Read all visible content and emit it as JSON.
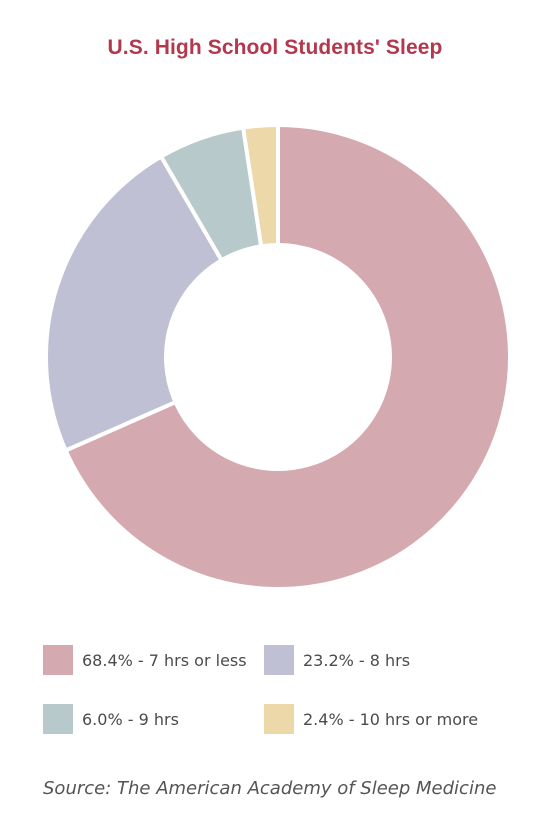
{
  "chart_data": {
    "type": "pie",
    "title": "U.S. High School Students' Sleep",
    "categories": [
      "7 hrs or less",
      "8 hrs",
      "9 hrs",
      "10 hrs or more"
    ],
    "values": [
      68.4,
      23.2,
      6.0,
      2.4
    ],
    "colors": [
      "#d5a9b0",
      "#bfc0d3",
      "#b7c9cb",
      "#ecd8a8"
    ],
    "legend": [
      "68.4% - 7 hrs or less",
      "23.2% - 8 hrs",
      "6.0% - 9 hrs",
      "2.4% - 10 hrs or more"
    ],
    "donut": true,
    "legend_position": "bottom",
    "source": "Source: The American Academy of Sleep Medicine"
  }
}
